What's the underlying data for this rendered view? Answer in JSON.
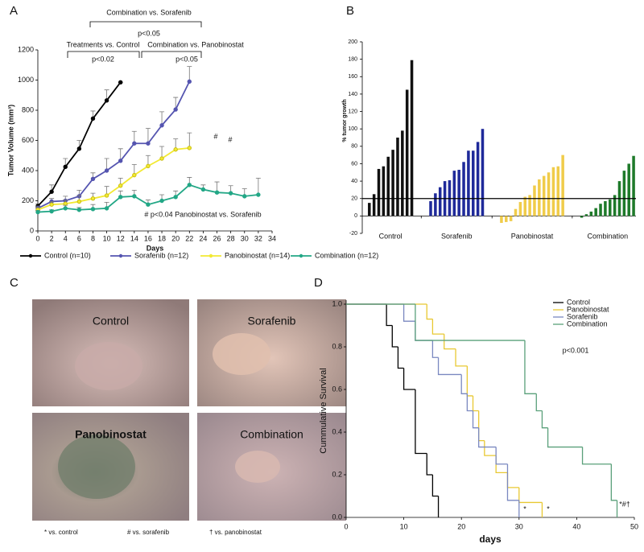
{
  "chart_data": [
    {
      "panel": "A",
      "type": "line",
      "xlabel": "Days",
      "ylabel": "Tumor Volume (mm³)",
      "xlim": [
        0,
        34
      ],
      "xticks": [
        0,
        2,
        4,
        6,
        8,
        10,
        12,
        14,
        16,
        18,
        20,
        22,
        24,
        26,
        28,
        30,
        32,
        34
      ],
      "ylim": [
        0,
        1200
      ],
      "yticks": [
        0,
        200,
        400,
        600,
        800,
        1000,
        1200
      ],
      "series": [
        {
          "name": "Control (n=10)",
          "color": "#000000",
          "x": [
            0,
            2,
            4,
            6,
            8,
            10,
            12
          ],
          "values": [
            165,
            260,
            425,
            545,
            745,
            865,
            985
          ],
          "errors": [
            15,
            45,
            55,
            55,
            50,
            70,
            0
          ]
        },
        {
          "name": "Sorafenib (n=12)",
          "color": "#5555b0",
          "x": [
            0,
            2,
            4,
            6,
            8,
            10,
            12,
            14,
            16,
            18,
            20,
            22
          ],
          "values": [
            150,
            195,
            200,
            230,
            345,
            400,
            465,
            580,
            580,
            700,
            805,
            990
          ],
          "errors": [
            15,
            20,
            30,
            40,
            40,
            80,
            80,
            80,
            100,
            90,
            80,
            100
          ]
        },
        {
          "name": "Panobinostat (n=14)",
          "color": "#f2e933",
          "x": [
            0,
            2,
            4,
            6,
            8,
            10,
            12,
            14,
            16,
            18,
            20,
            22
          ],
          "values": [
            140,
            175,
            180,
            195,
            215,
            235,
            300,
            370,
            430,
            480,
            540,
            550
          ],
          "errors": [
            15,
            20,
            25,
            40,
            35,
            60,
            50,
            70,
            70,
            80,
            70,
            100
          ]
        },
        {
          "name": "Combination (n=12)",
          "color": "#22a786",
          "x": [
            0,
            2,
            4,
            6,
            8,
            10,
            12,
            14,
            16,
            18,
            20,
            22,
            24,
            26,
            28,
            30,
            32
          ],
          "values": [
            125,
            130,
            150,
            140,
            145,
            150,
            225,
            230,
            175,
            200,
            225,
            305,
            275,
            255,
            250,
            230,
            240
          ],
          "errors": [
            10,
            10,
            20,
            15,
            30,
            40,
            40,
            40,
            30,
            40,
            40,
            50,
            30,
            70,
            50,
            50,
            110
          ]
        }
      ],
      "annotations": [
        "Combination vs. Sorafenib",
        "p<0.05",
        "Treatments vs. Control",
        "p<0.02",
        "Combination vs. Panobinostat",
        "p<0.05",
        "#",
        "#",
        "# p<0.04 Panobinostat vs. Sorafenib"
      ]
    },
    {
      "panel": "B",
      "type": "bar",
      "ylabel": "% tumor growth",
      "ylim": [
        -20,
        200
      ],
      "yticks": [
        -20,
        0,
        20,
        40,
        60,
        80,
        100,
        120,
        140,
        160,
        180,
        200
      ],
      "reference_line": 20,
      "series": [
        {
          "name": "Control",
          "color": "#111111",
          "values": [
            15,
            25,
            54,
            57,
            68,
            76,
            90,
            98,
            145,
            179
          ]
        },
        {
          "name": "Sorafenib",
          "color": "#1f2a9a",
          "values": [
            17,
            26,
            33,
            40,
            41,
            52,
            53,
            62,
            75,
            75,
            85,
            100
          ]
        },
        {
          "name": "Panobinostat",
          "color": "#f0cc4a",
          "values": [
            -8,
            -7,
            -6,
            8,
            16,
            22,
            24,
            35,
            42,
            46,
            50,
            56,
            57,
            70
          ]
        },
        {
          "name": "Combination",
          "color": "#1e7a2a",
          "values": [
            -2,
            2,
            5,
            9,
            14,
            17,
            19,
            24,
            40,
            52,
            60,
            69
          ]
        }
      ]
    },
    {
      "panel": "D",
      "type": "step",
      "xlabel": "days",
      "ylabel": "Cummulative Survival",
      "xlim": [
        0,
        50
      ],
      "xticks": [
        0,
        10,
        20,
        30,
        40,
        50
      ],
      "ylim": [
        0,
        1
      ],
      "yticks": [
        {
          "value": 0,
          "label": "0.0"
        },
        0.2,
        0.4,
        0.6,
        0.8,
        {
          "value": 1,
          "label": "1.0"
        }
      ],
      "series": [
        {
          "name": "Control",
          "color": "#000000",
          "x": [
            0,
            7,
            8,
            9,
            10,
            12,
            14,
            15,
            16
          ],
          "values": [
            1,
            0.9,
            0.8,
            0.7,
            0.6,
            0.3,
            0.2,
            0.1,
            0
          ]
        },
        {
          "name": "Panobinostat",
          "color": "#e8c832",
          "x": [
            0,
            14,
            15,
            17,
            19,
            21,
            22,
            23,
            24,
            26,
            28,
            30,
            34
          ],
          "values": [
            1,
            0.93,
            0.86,
            0.79,
            0.71,
            0.57,
            0.5,
            0.36,
            0.29,
            0.21,
            0.14,
            0.07,
            0
          ]
        },
        {
          "name": "Sorafenib",
          "color": "#7a88c0",
          "x": [
            0,
            10,
            12,
            15,
            16,
            20,
            21,
            22,
            23,
            26,
            28,
            30
          ],
          "values": [
            1,
            0.92,
            0.83,
            0.75,
            0.67,
            0.58,
            0.5,
            0.42,
            0.33,
            0.25,
            0.08,
            0
          ]
        },
        {
          "name": "Combination",
          "color": "#5aa07a",
          "x": [
            0,
            12,
            31,
            33,
            34,
            35,
            41,
            46,
            47
          ],
          "values": [
            1,
            0.83,
            0.58,
            0.5,
            0.42,
            0.33,
            0.25,
            0.08,
            0
          ]
        }
      ],
      "annotations": [
        "p<0.001",
        "*",
        "*",
        "*#†"
      ]
    }
  ],
  "photos": {
    "panel": "C",
    "labels": [
      "Control",
      "Sorafenib",
      "Panobinostat",
      "Combination"
    ],
    "footnote": [
      "* vs. control",
      "# vs. sorafenib",
      "† vs. panobinostat"
    ]
  }
}
